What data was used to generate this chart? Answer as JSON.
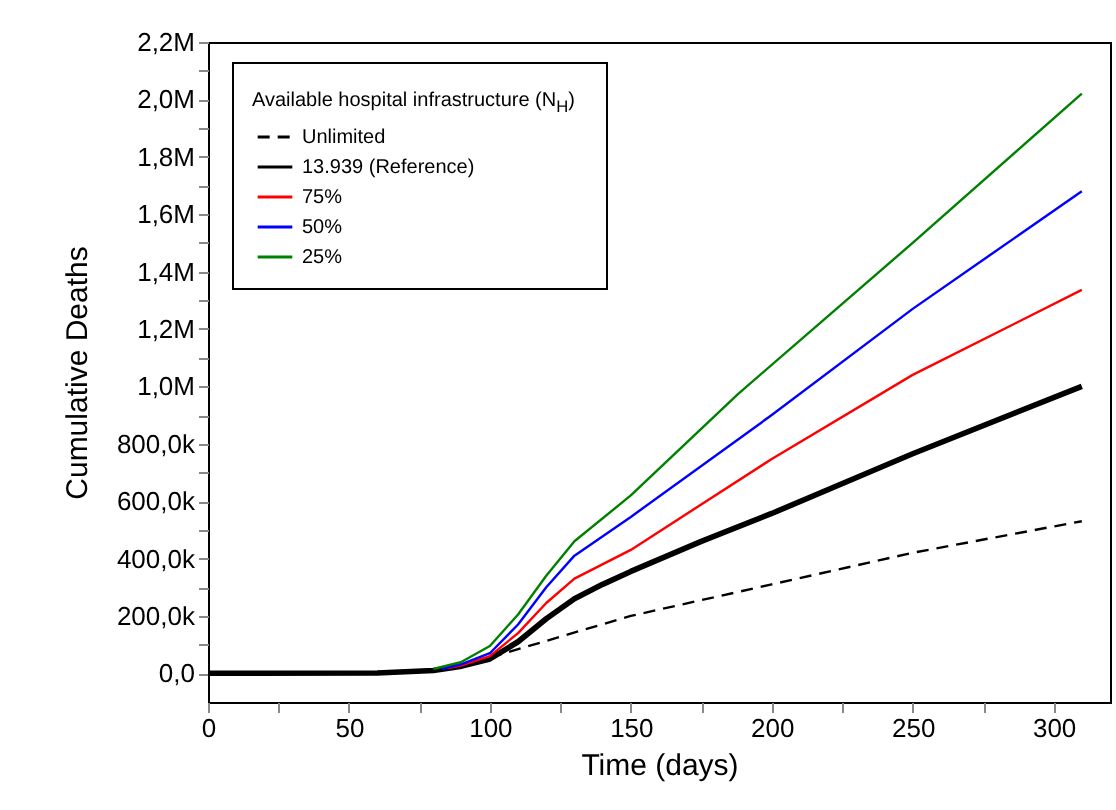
{
  "chart_data": {
    "type": "line",
    "xlabel": "Time (days)",
    "ylabel": "Cumulative Deaths",
    "legend_title": "Available hospital infrastructure (N$_{H}$)",
    "xlim": [
      0,
      320
    ],
    "ylim": [
      -100000,
      2200000
    ],
    "xticks": [
      0,
      {
        "value": 25,
        "label": null
      },
      50,
      {
        "value": 75,
        "label": null
      },
      100,
      {
        "value": 125,
        "label": null
      },
      150,
      {
        "value": 175,
        "label": null
      },
      200,
      {
        "value": 225,
        "label": null
      },
      250,
      {
        "value": 275,
        "label": null
      },
      300
    ],
    "yticks": [
      {
        "value": 0,
        "label": "0,0"
      },
      {
        "value": 100000,
        "label": null
      },
      {
        "value": 200000,
        "label": "200,0k"
      },
      {
        "value": 300000,
        "label": null
      },
      {
        "value": 400000,
        "label": "400,0k"
      },
      {
        "value": 500000,
        "label": null
      },
      {
        "value": 600000,
        "label": "600,0k"
      },
      {
        "value": 700000,
        "label": null
      },
      {
        "value": 800000,
        "label": "800,0k"
      },
      {
        "value": 900000,
        "label": null
      },
      {
        "value": 1000000,
        "label": "1,0M"
      },
      {
        "value": 1100000,
        "label": null
      },
      {
        "value": 1200000,
        "label": "1,2M"
      },
      {
        "value": 1300000,
        "label": null
      },
      {
        "value": 1400000,
        "label": "1,4M"
      },
      {
        "value": 1500000,
        "label": null
      },
      {
        "value": 1600000,
        "label": "1,6M"
      },
      {
        "value": 1700000,
        "label": null
      },
      {
        "value": 1800000,
        "label": "1,8M"
      },
      {
        "value": 1900000,
        "label": null
      },
      {
        "value": 2000000,
        "label": "2,0M"
      },
      {
        "value": 2100000,
        "label": null
      },
      {
        "value": 2200000,
        "label": "2,2M"
      }
    ],
    "grid": false,
    "legend": "top left",
    "series": [
      {
        "name": "Unlimited",
        "color": "#000000",
        "line_style": "dashed",
        "x": [
          100,
          150,
          200,
          250,
          310
        ],
        "values": [
          55000,
          200000,
          310000,
          420000,
          530000
        ]
      },
      {
        "name": "13.939 (Reference)",
        "color": "#000000",
        "line_style": "solid",
        "x": [
          0,
          60,
          80,
          90,
          100,
          110,
          120,
          130,
          140,
          150,
          175,
          200,
          250,
          310
        ],
        "values": [
          0,
          1000,
          10000,
          25000,
          50000,
          110000,
          190000,
          260000,
          310000,
          355000,
          460000,
          557000,
          765000,
          1000000
        ]
      },
      {
        "name": "75%",
        "color": "#ff0000",
        "line_style": "solid",
        "x": [
          85,
          90,
          100,
          110,
          120,
          130,
          150,
          200,
          250,
          310
        ],
        "values": [
          17000,
          28000,
          60000,
          140000,
          245000,
          330000,
          430000,
          747000,
          1040000,
          1336000
        ]
      },
      {
        "name": "50%",
        "color": "#0000ff",
        "line_style": "solid",
        "x": [
          83,
          90,
          100,
          110,
          120,
          130,
          150,
          200,
          250,
          310
        ],
        "values": [
          15000,
          32000,
          70000,
          170000,
          300000,
          410000,
          545000,
          900000,
          1270000,
          1680000
        ]
      },
      {
        "name": "25%",
        "color": "#008000",
        "line_style": "solid",
        "x": [
          80,
          90,
          100,
          110,
          120,
          130,
          150,
          188,
          250,
          310
        ],
        "values": [
          15000,
          40000,
          95000,
          205000,
          340000,
          460000,
          620000,
          973000,
          1500000,
          2020000
        ]
      }
    ]
  }
}
